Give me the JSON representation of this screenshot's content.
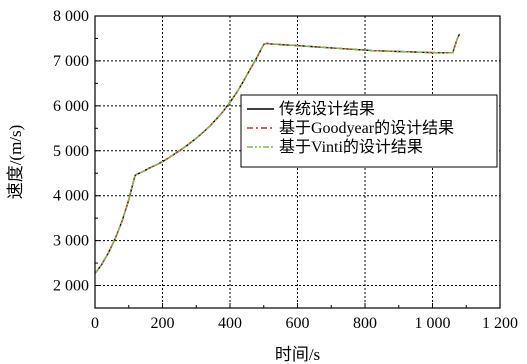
{
  "chart_data": {
    "type": "line",
    "xlabel": "时间/s",
    "ylabel": "速度/(m/s)",
    "xlim": [
      0,
      1200
    ],
    "ylim": [
      1500,
      8000
    ],
    "xticks": [
      {
        "value": 0,
        "label": "0"
      },
      {
        "value": 200,
        "label": "200"
      },
      {
        "value": 400,
        "label": "400"
      },
      {
        "value": 600,
        "label": "600"
      },
      {
        "value": 800,
        "label": "800"
      },
      {
        "value": 1000,
        "label": "1 000"
      },
      {
        "value": 1200,
        "label": "1 200"
      }
    ],
    "yticks": [
      {
        "value": 2000,
        "label": "2 000"
      },
      {
        "value": 3000,
        "label": "3 000"
      },
      {
        "value": 4000,
        "label": "4 000"
      },
      {
        "value": 5000,
        "label": "5 000"
      },
      {
        "value": 6000,
        "label": "6 000"
      },
      {
        "value": 7000,
        "label": "7 000"
      },
      {
        "value": 8000,
        "label": "8 000"
      }
    ],
    "grid": true,
    "legend_position": "right-middle",
    "series": [
      {
        "name": "传统设计结果",
        "color": "#000000",
        "dash": "solid",
        "x": [
          0,
          20,
          40,
          60,
          80,
          100,
          118,
          120,
          140,
          160,
          180,
          200,
          220,
          240,
          260,
          280,
          300,
          320,
          340,
          360,
          380,
          400,
          420,
          440,
          460,
          480,
          500,
          510,
          520,
          540,
          560,
          580,
          600,
          620,
          640,
          660,
          680,
          700,
          720,
          740,
          760,
          780,
          800,
          820,
          840,
          860,
          880,
          900,
          920,
          940,
          960,
          980,
          1000,
          1020,
          1040,
          1060,
          1065,
          1070,
          1075,
          1080
        ],
        "y": [
          2270,
          2470,
          2730,
          3050,
          3430,
          3910,
          4430,
          4460,
          4530,
          4610,
          4680,
          4760,
          4850,
          4950,
          5050,
          5160,
          5280,
          5410,
          5550,
          5710,
          5880,
          6080,
          6300,
          6550,
          6820,
          7080,
          7370,
          7390,
          7380,
          7370,
          7360,
          7350,
          7340,
          7330,
          7320,
          7310,
          7300,
          7290,
          7280,
          7270,
          7260,
          7250,
          7240,
          7230,
          7225,
          7220,
          7215,
          7210,
          7205,
          7200,
          7195,
          7190,
          7185,
          7180,
          7180,
          7180,
          7300,
          7420,
          7520,
          7600
        ]
      },
      {
        "name": "基于Goodyear的设计结果",
        "color": "#e0262a",
        "dash": "dashdot",
        "x": [
          0,
          20,
          40,
          60,
          80,
          100,
          118,
          120,
          140,
          160,
          180,
          200,
          220,
          240,
          260,
          280,
          300,
          320,
          340,
          360,
          380,
          400,
          420,
          440,
          460,
          480,
          500,
          510,
          520,
          540,
          560,
          580,
          600,
          620,
          640,
          660,
          680,
          700,
          720,
          740,
          760,
          780,
          800,
          820,
          840,
          860,
          880,
          900,
          920,
          940,
          960,
          980,
          1000,
          1020,
          1040,
          1060,
          1065,
          1070,
          1075,
          1080
        ],
        "y": [
          2270,
          2470,
          2730,
          3050,
          3430,
          3910,
          4430,
          4460,
          4530,
          4610,
          4680,
          4760,
          4850,
          4950,
          5050,
          5160,
          5280,
          5410,
          5550,
          5710,
          5880,
          6080,
          6300,
          6550,
          6820,
          7080,
          7370,
          7390,
          7380,
          7370,
          7360,
          7350,
          7340,
          7330,
          7320,
          7310,
          7300,
          7290,
          7280,
          7270,
          7260,
          7250,
          7240,
          7230,
          7225,
          7220,
          7215,
          7210,
          7205,
          7200,
          7195,
          7190,
          7185,
          7180,
          7180,
          7180,
          7300,
          7420,
          7520,
          7600
        ]
      },
      {
        "name": "基于Vinti的设计结果",
        "color": "#7ac143",
        "dash": "dashdotdot",
        "x": [
          0,
          20,
          40,
          60,
          80,
          100,
          118,
          120,
          140,
          160,
          180,
          200,
          220,
          240,
          260,
          280,
          300,
          320,
          340,
          360,
          380,
          400,
          420,
          440,
          460,
          480,
          500,
          510,
          520,
          540,
          560,
          580,
          600,
          620,
          640,
          660,
          680,
          700,
          720,
          740,
          760,
          780,
          800,
          820,
          840,
          860,
          880,
          900,
          920,
          940,
          960,
          980,
          1000,
          1020,
          1040,
          1060,
          1065,
          1070,
          1075,
          1080
        ],
        "y": [
          2270,
          2470,
          2730,
          3050,
          3430,
          3910,
          4430,
          4460,
          4530,
          4610,
          4680,
          4760,
          4850,
          4950,
          5050,
          5160,
          5280,
          5410,
          5550,
          5710,
          5880,
          6080,
          6300,
          6550,
          6820,
          7080,
          7370,
          7390,
          7380,
          7370,
          7360,
          7350,
          7340,
          7330,
          7320,
          7310,
          7300,
          7290,
          7280,
          7270,
          7260,
          7250,
          7240,
          7230,
          7225,
          7220,
          7215,
          7210,
          7205,
          7200,
          7195,
          7190,
          7185,
          7180,
          7180,
          7180,
          7300,
          7420,
          7520,
          7600
        ]
      }
    ]
  }
}
